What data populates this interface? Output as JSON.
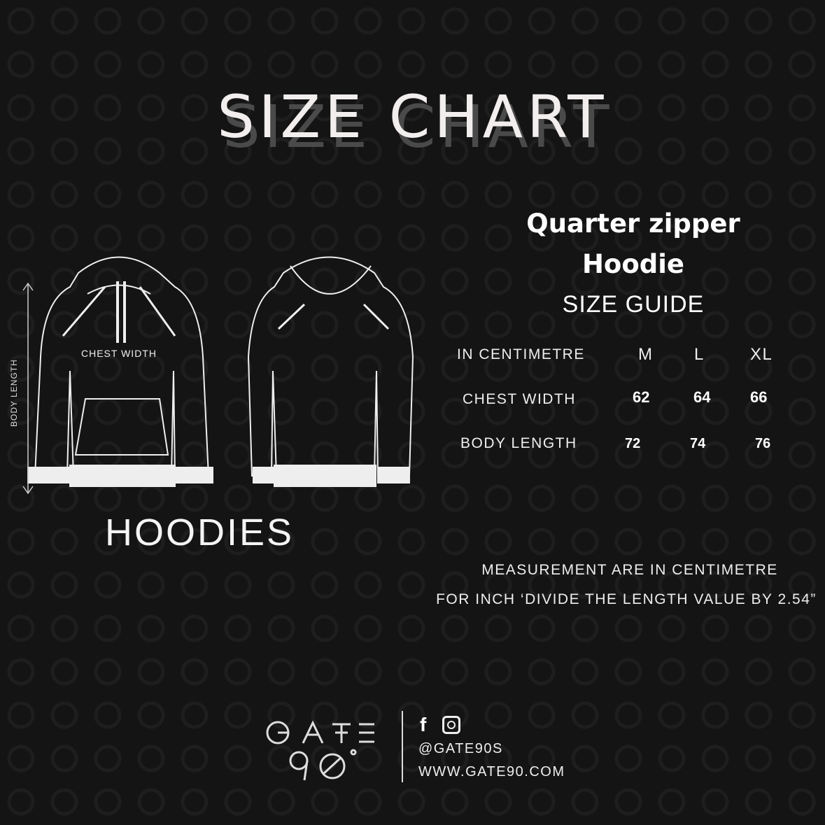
{
  "header": {
    "title": "SIZE CHART"
  },
  "product": {
    "name_line1": "Quarter zipper",
    "name_line2": "Hoodie",
    "section": "SIZE GUIDE"
  },
  "illustration": {
    "chest_label": "CHEST WIDTH",
    "body_label": "BODY LENGTH",
    "category": "HOODIES"
  },
  "table": {
    "unit_header": "IN CENTIMETRE",
    "sizes": [
      "M",
      "L",
      "XL"
    ],
    "rows": [
      {
        "label": "CHEST WIDTH",
        "values": [
          "62",
          "64",
          "66"
        ]
      },
      {
        "label": "BODY LENGTH",
        "values": [
          "72",
          "74",
          "76"
        ]
      }
    ]
  },
  "notes": {
    "line1": "MEASUREMENT ARE IN CENTIMETRE",
    "line2": "FOR INCH ‘DIVIDE THE LENGTH VALUE BY 2.54”"
  },
  "footer": {
    "logo_text": "GATE 90'",
    "social_icons": [
      "facebook-icon",
      "instagram-icon"
    ],
    "handle": "@GATE90S",
    "website": "WWW.GATE90.COM"
  }
}
